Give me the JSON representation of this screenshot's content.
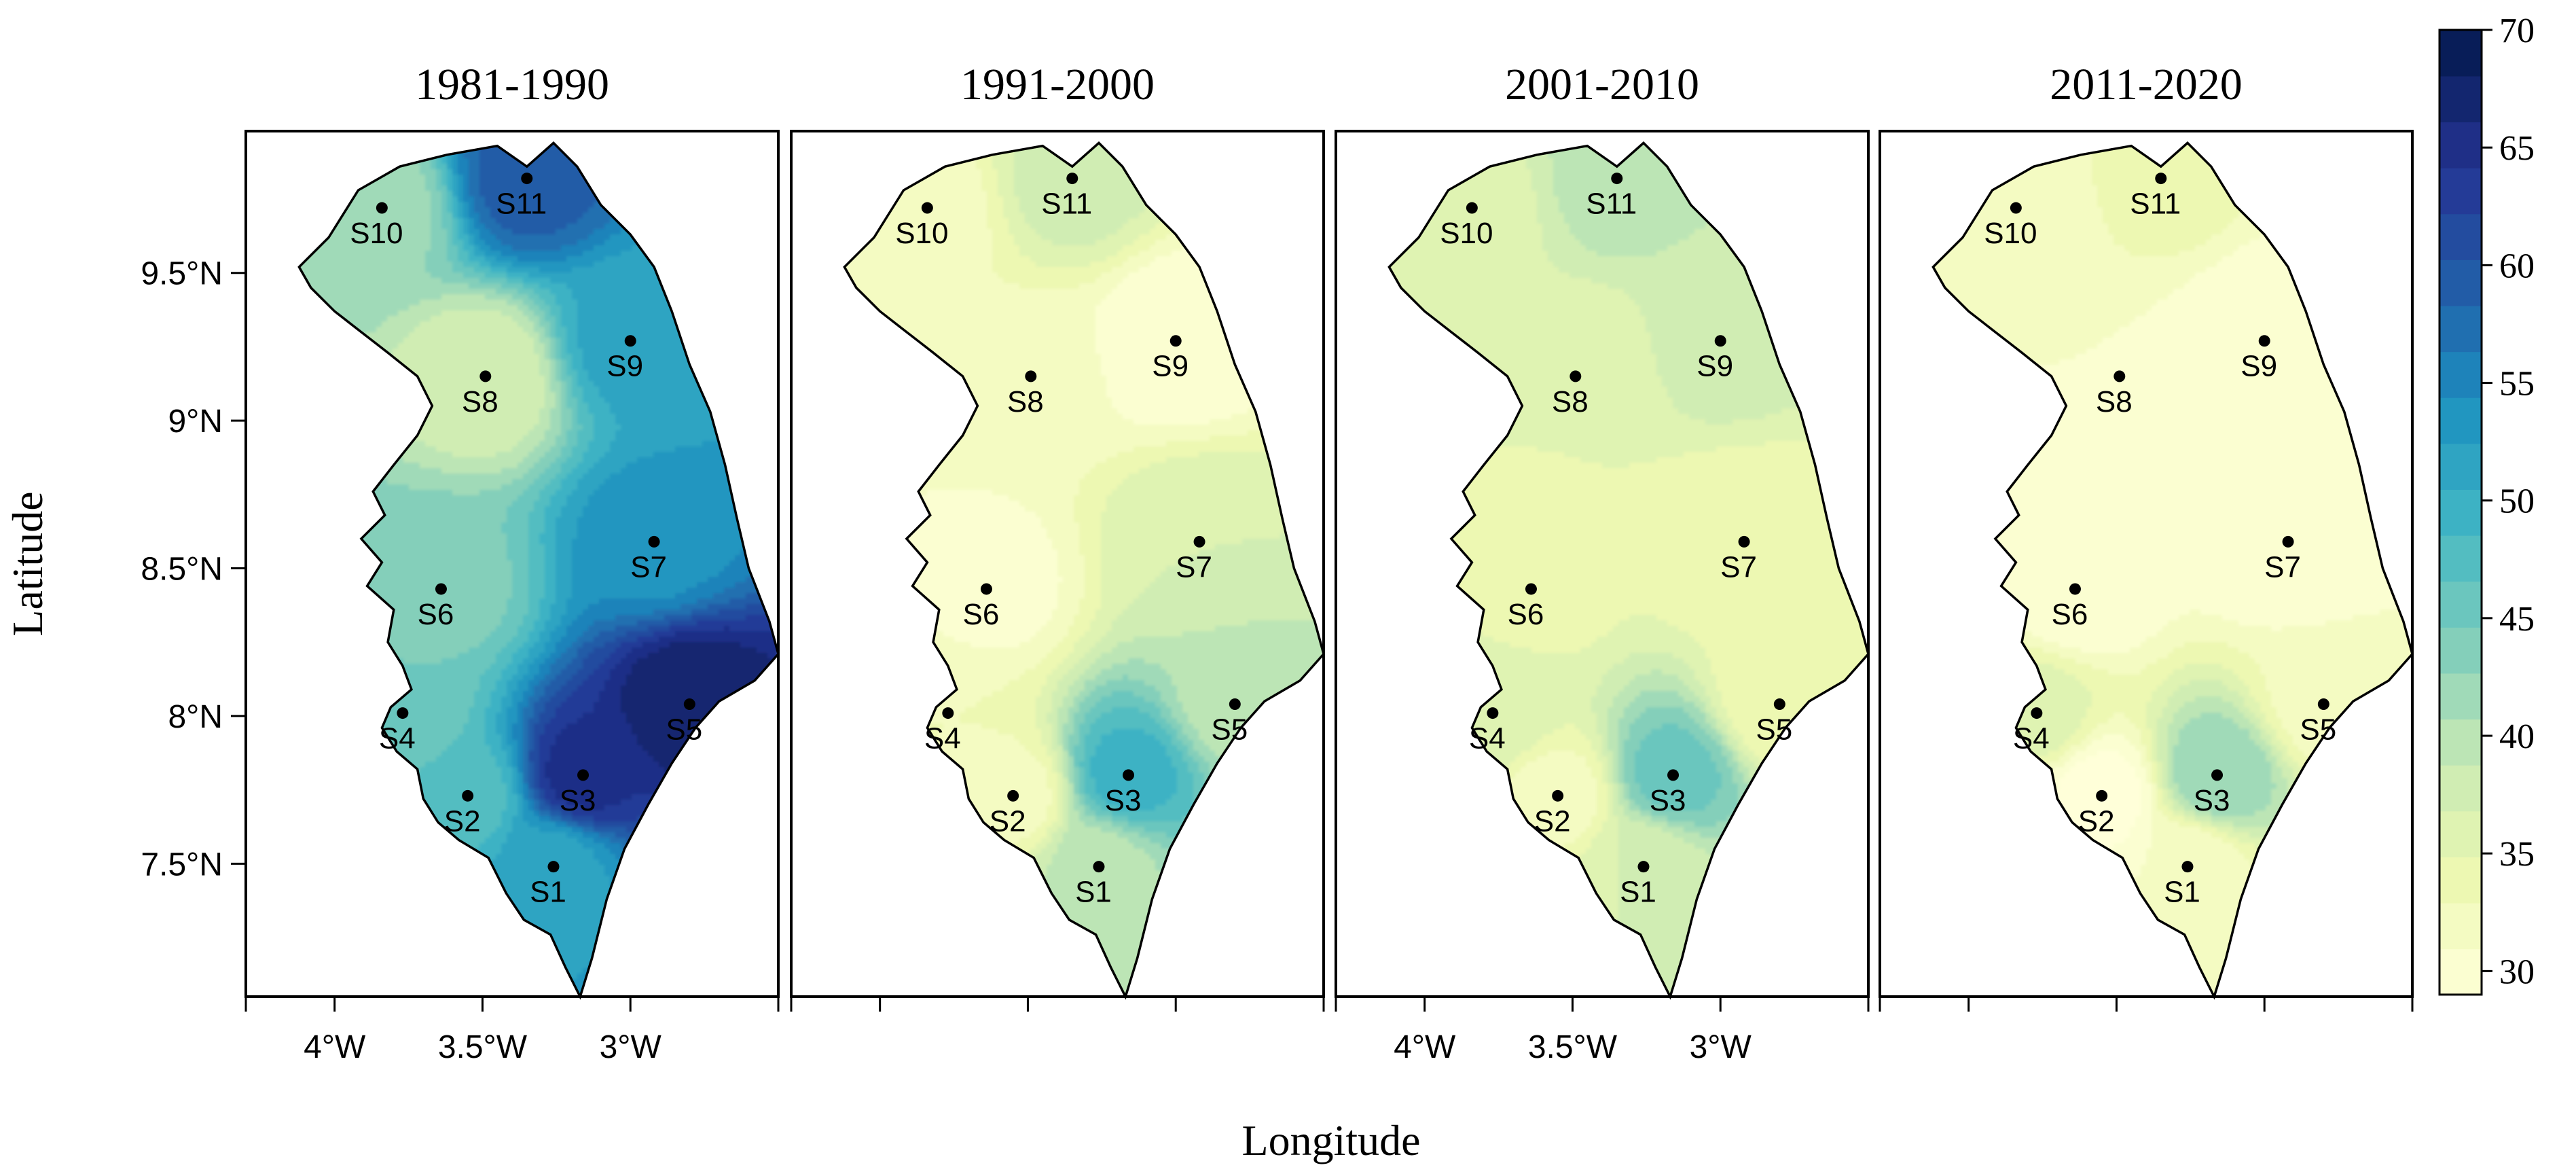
{
  "figure": {
    "x_axis_label": "Longitude",
    "y_axis_label": "Latitude",
    "panels": [
      {
        "title": "1981-1990",
        "show_x_ticks": true,
        "show_y_ticks": true
      },
      {
        "title": "1991-2000",
        "show_x_ticks": false,
        "show_y_ticks": false
      },
      {
        "title": "2001-2010",
        "show_x_ticks": true,
        "show_y_ticks": false
      },
      {
        "title": "2011-2020",
        "show_x_ticks": false,
        "show_y_ticks": false
      }
    ],
    "x_ticks": [
      "4°W",
      "3.5°W",
      "3°W"
    ],
    "x_tick_values": [
      -4,
      -3.5,
      -3
    ],
    "y_ticks": [
      "9.5°N",
      "9°N",
      "8.5°N",
      "8°N",
      "7.5°N"
    ],
    "y_tick_values": [
      9.5,
      9,
      8.5,
      8,
      7.5
    ],
    "lon_range": [
      -4.3,
      -2.5
    ],
    "lat_range": [
      7.05,
      9.98
    ],
    "stations": [
      {
        "label": "S1",
        "lon": -3.26,
        "lat": 7.49
      },
      {
        "label": "S2",
        "lon": -3.55,
        "lat": 7.73
      },
      {
        "label": "S3",
        "lon": -3.16,
        "lat": 7.8
      },
      {
        "label": "S4",
        "lon": -3.77,
        "lat": 8.01
      },
      {
        "label": "S5",
        "lon": -2.8,
        "lat": 8.04
      },
      {
        "label": "S6",
        "lon": -3.64,
        "lat": 8.43
      },
      {
        "label": "S7",
        "lon": -2.92,
        "lat": 8.59
      },
      {
        "label": "S8",
        "lon": -3.49,
        "lat": 9.15
      },
      {
        "label": "S9",
        "lon": -3.0,
        "lat": 9.27
      },
      {
        "label": "S10",
        "lon": -3.84,
        "lat": 9.72
      },
      {
        "label": "S11",
        "lon": -3.35,
        "lat": 9.82
      }
    ],
    "colorbar": {
      "ticks": [
        "70",
        "65",
        "60",
        "55",
        "50",
        "45",
        "40",
        "35",
        "30"
      ],
      "tick_values": [
        70,
        65,
        60,
        55,
        50,
        45,
        40,
        35,
        30
      ],
      "min": 29,
      "max": 70,
      "step": 2,
      "palette": "YlGnBu",
      "colors": [
        "#ffffd9",
        "#edf8b1",
        "#c7e9b4",
        "#7fcdbb",
        "#41b6c4",
        "#1d91c0",
        "#225ea8",
        "#253494",
        "#081d58"
      ]
    },
    "station_values": [
      [
        52,
        48,
        66,
        45,
        69,
        44,
        54,
        37,
        52,
        42,
        60
      ],
      [
        40,
        32,
        50,
        33,
        40,
        30,
        37,
        32,
        29,
        32,
        38
      ],
      [
        37,
        32,
        46,
        37,
        33,
        34,
        33,
        35,
        38,
        36,
        40
      ],
      [
        31,
        28,
        43,
        36,
        32,
        29,
        29,
        31,
        29,
        31,
        34
      ]
    ]
  }
}
